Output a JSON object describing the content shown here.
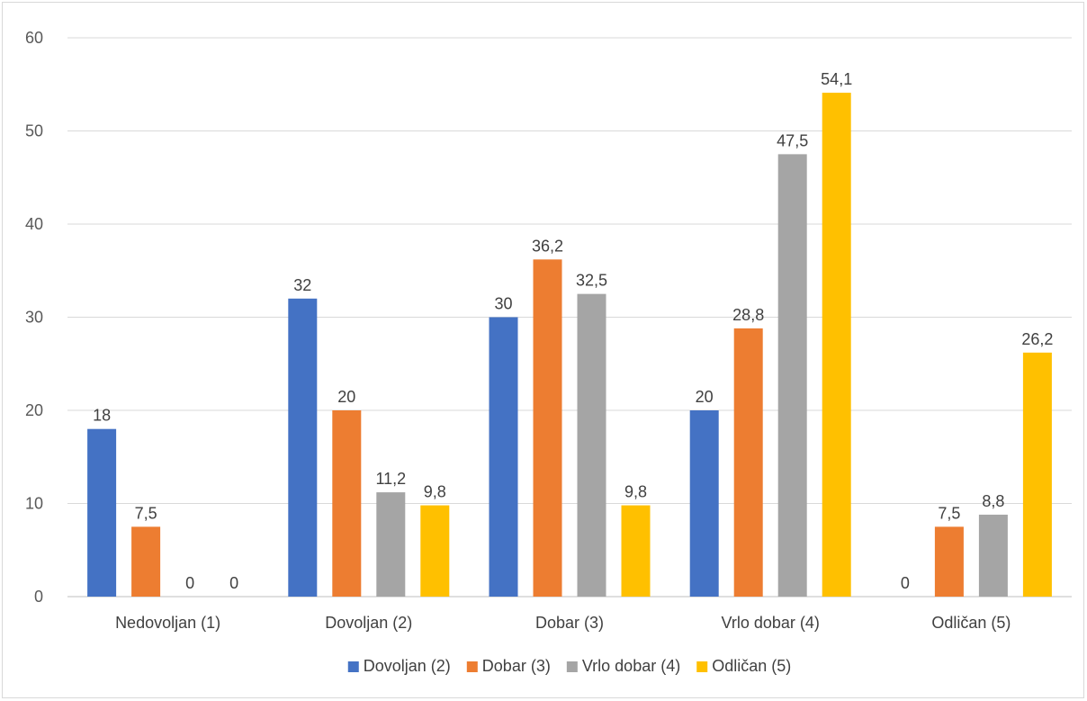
{
  "chart_data": {
    "type": "bar",
    "title": "",
    "xlabel": "",
    "ylabel": "",
    "categories": [
      "Nedovoljan (1)",
      "Dovoljan (2)",
      "Dobar (3)",
      "Vrlo dobar (4)",
      "Odličan (5)"
    ],
    "ylim": [
      0,
      60
    ],
    "yticks": [
      0,
      10,
      20,
      30,
      40,
      50,
      60
    ],
    "grid": true,
    "legend_position": "bottom",
    "series": [
      {
        "name": "Dovoljan (2)",
        "color": "#4472C4",
        "values": [
          18,
          32,
          30,
          20,
          0
        ],
        "labels": [
          "18",
          "32",
          "30",
          "20",
          "0"
        ]
      },
      {
        "name": "Dobar (3)",
        "color": "#ED7D31",
        "values": [
          7.5,
          20,
          36.2,
          28.8,
          7.5
        ],
        "labels": [
          "7,5",
          "20",
          "36,2",
          "28,8",
          "7,5"
        ]
      },
      {
        "name": "Vrlo dobar (4)",
        "color": "#A5A5A5",
        "values": [
          0,
          11.2,
          32.5,
          47.5,
          8.8
        ],
        "labels": [
          "0",
          "11,2",
          "32,5",
          "47,5",
          "8,8"
        ]
      },
      {
        "name": "Odličan (5)",
        "color": "#FFC000",
        "values": [
          0,
          9.8,
          9.8,
          54.1,
          26.2
        ],
        "labels": [
          "0",
          "9,8",
          "9,8",
          "54,1",
          "26,2"
        ]
      }
    ]
  }
}
